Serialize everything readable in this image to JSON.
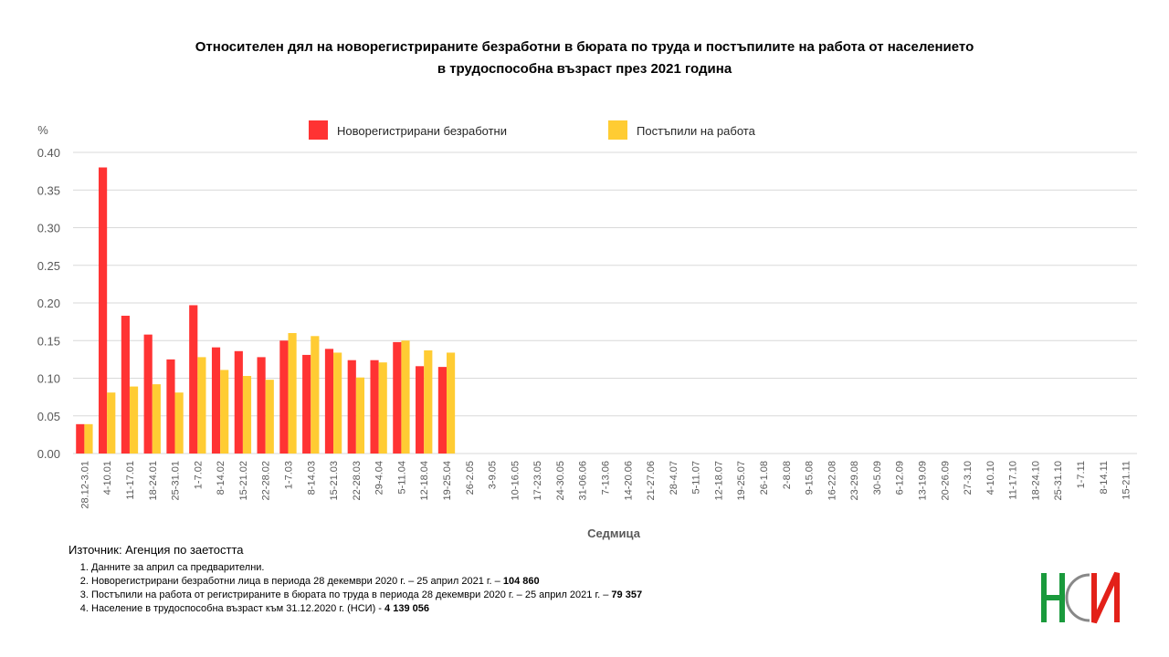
{
  "chart_data": {
    "type": "bar",
    "title": [
      "Относителен дял на новорегистрираните безработни в бюрата по труда и постъпилите на работа от населението",
      "в трудоспособна възраст през 2021 година"
    ],
    "y_label": "%",
    "x_label": "Седмица",
    "categories": [
      "28.12-3.01",
      "4-10.01",
      "11-17.01",
      "18-24.01",
      "25-31.01",
      "1-7.02",
      "8-14.02",
      "15-21.02",
      "22-28.02",
      "1-7.03",
      "8-14.03",
      "15-21.03",
      "22-28.03",
      "29-4.04",
      "5-11.04",
      "12-18.04",
      "19-25.04",
      "26-2.05",
      "3-9.05",
      "10-16.05",
      "17-23.05",
      "24-30.05",
      "31-06.06",
      "7-13.06",
      "14-20.06",
      "21-27.06",
      "28-4.07",
      "5-11.07",
      "12-18.07",
      "19-25.07",
      "26-1.08",
      "2-8.08",
      "9-15.08",
      "16-22.08",
      "23-29.08",
      "30-5.09",
      "6-12.09",
      "13-19.09",
      "20-26.09",
      "27-3.10",
      "4-10.10",
      "11-17.10",
      "18-24.10",
      "25-31.10",
      "1-7.11",
      "8-14.11",
      "15-21.11"
    ],
    "series": [
      {
        "name": "Новорегистрирани безработни",
        "color": "#ff3333",
        "values": [
          0.039,
          0.38,
          0.183,
          0.158,
          0.125,
          0.197,
          0.141,
          0.136,
          0.128,
          0.15,
          0.131,
          0.139,
          0.124,
          0.124,
          0.148,
          0.116,
          0.115,
          null,
          null,
          null,
          null,
          null,
          null,
          null,
          null,
          null,
          null,
          null,
          null,
          null,
          null,
          null,
          null,
          null,
          null,
          null,
          null,
          null,
          null,
          null,
          null,
          null,
          null,
          null,
          null,
          null,
          null
        ]
      },
      {
        "name": "Постъпили на работа",
        "color": "#ffcc33",
        "values": [
          0.039,
          0.081,
          0.089,
          0.092,
          0.081,
          0.128,
          0.111,
          0.103,
          0.098,
          0.16,
          0.156,
          0.134,
          0.101,
          0.121,
          0.15,
          0.137,
          0.134,
          null,
          null,
          null,
          null,
          null,
          null,
          null,
          null,
          null,
          null,
          null,
          null,
          null,
          null,
          null,
          null,
          null,
          null,
          null,
          null,
          null,
          null,
          null,
          null,
          null,
          null,
          null,
          null,
          null,
          null
        ]
      }
    ],
    "ylim": [
      0,
      0.4
    ],
    "yticks": [
      {
        "value": 0,
        "label": "0.00"
      },
      {
        "value": 0.05,
        "label": "0.05"
      },
      {
        "value": 0.1,
        "label": "0.10"
      },
      {
        "value": 0.15,
        "label": "0.15"
      },
      {
        "value": 0.2,
        "label": "0.20"
      },
      {
        "value": 0.25,
        "label": "0.25"
      },
      {
        "value": 0.3,
        "label": "0.30"
      },
      {
        "value": 0.35,
        "label": "0.35"
      },
      {
        "value": 0.4,
        "label": "0.40"
      }
    ],
    "grid": true
  },
  "source": "Източник: Агенция по заетостта",
  "notes": [
    {
      "text": "Данните за април са предварителни."
    },
    {
      "text": "Новорегистрирани безработни лица в периода 28 декември 2020 г. – 25 април 2021 г. – ",
      "bold": "104 860"
    },
    {
      "text": "Постъпили на работа от регистрираните в бюрата по труда в периода 28 декември 2020 г. – 25 април 2021 г. – ",
      "bold": "79 357"
    },
    {
      "text": "Население в трудоспособна възраст към 31.12.2020 г. (НСИ) - ",
      "bold": "4 139 056"
    }
  ]
}
